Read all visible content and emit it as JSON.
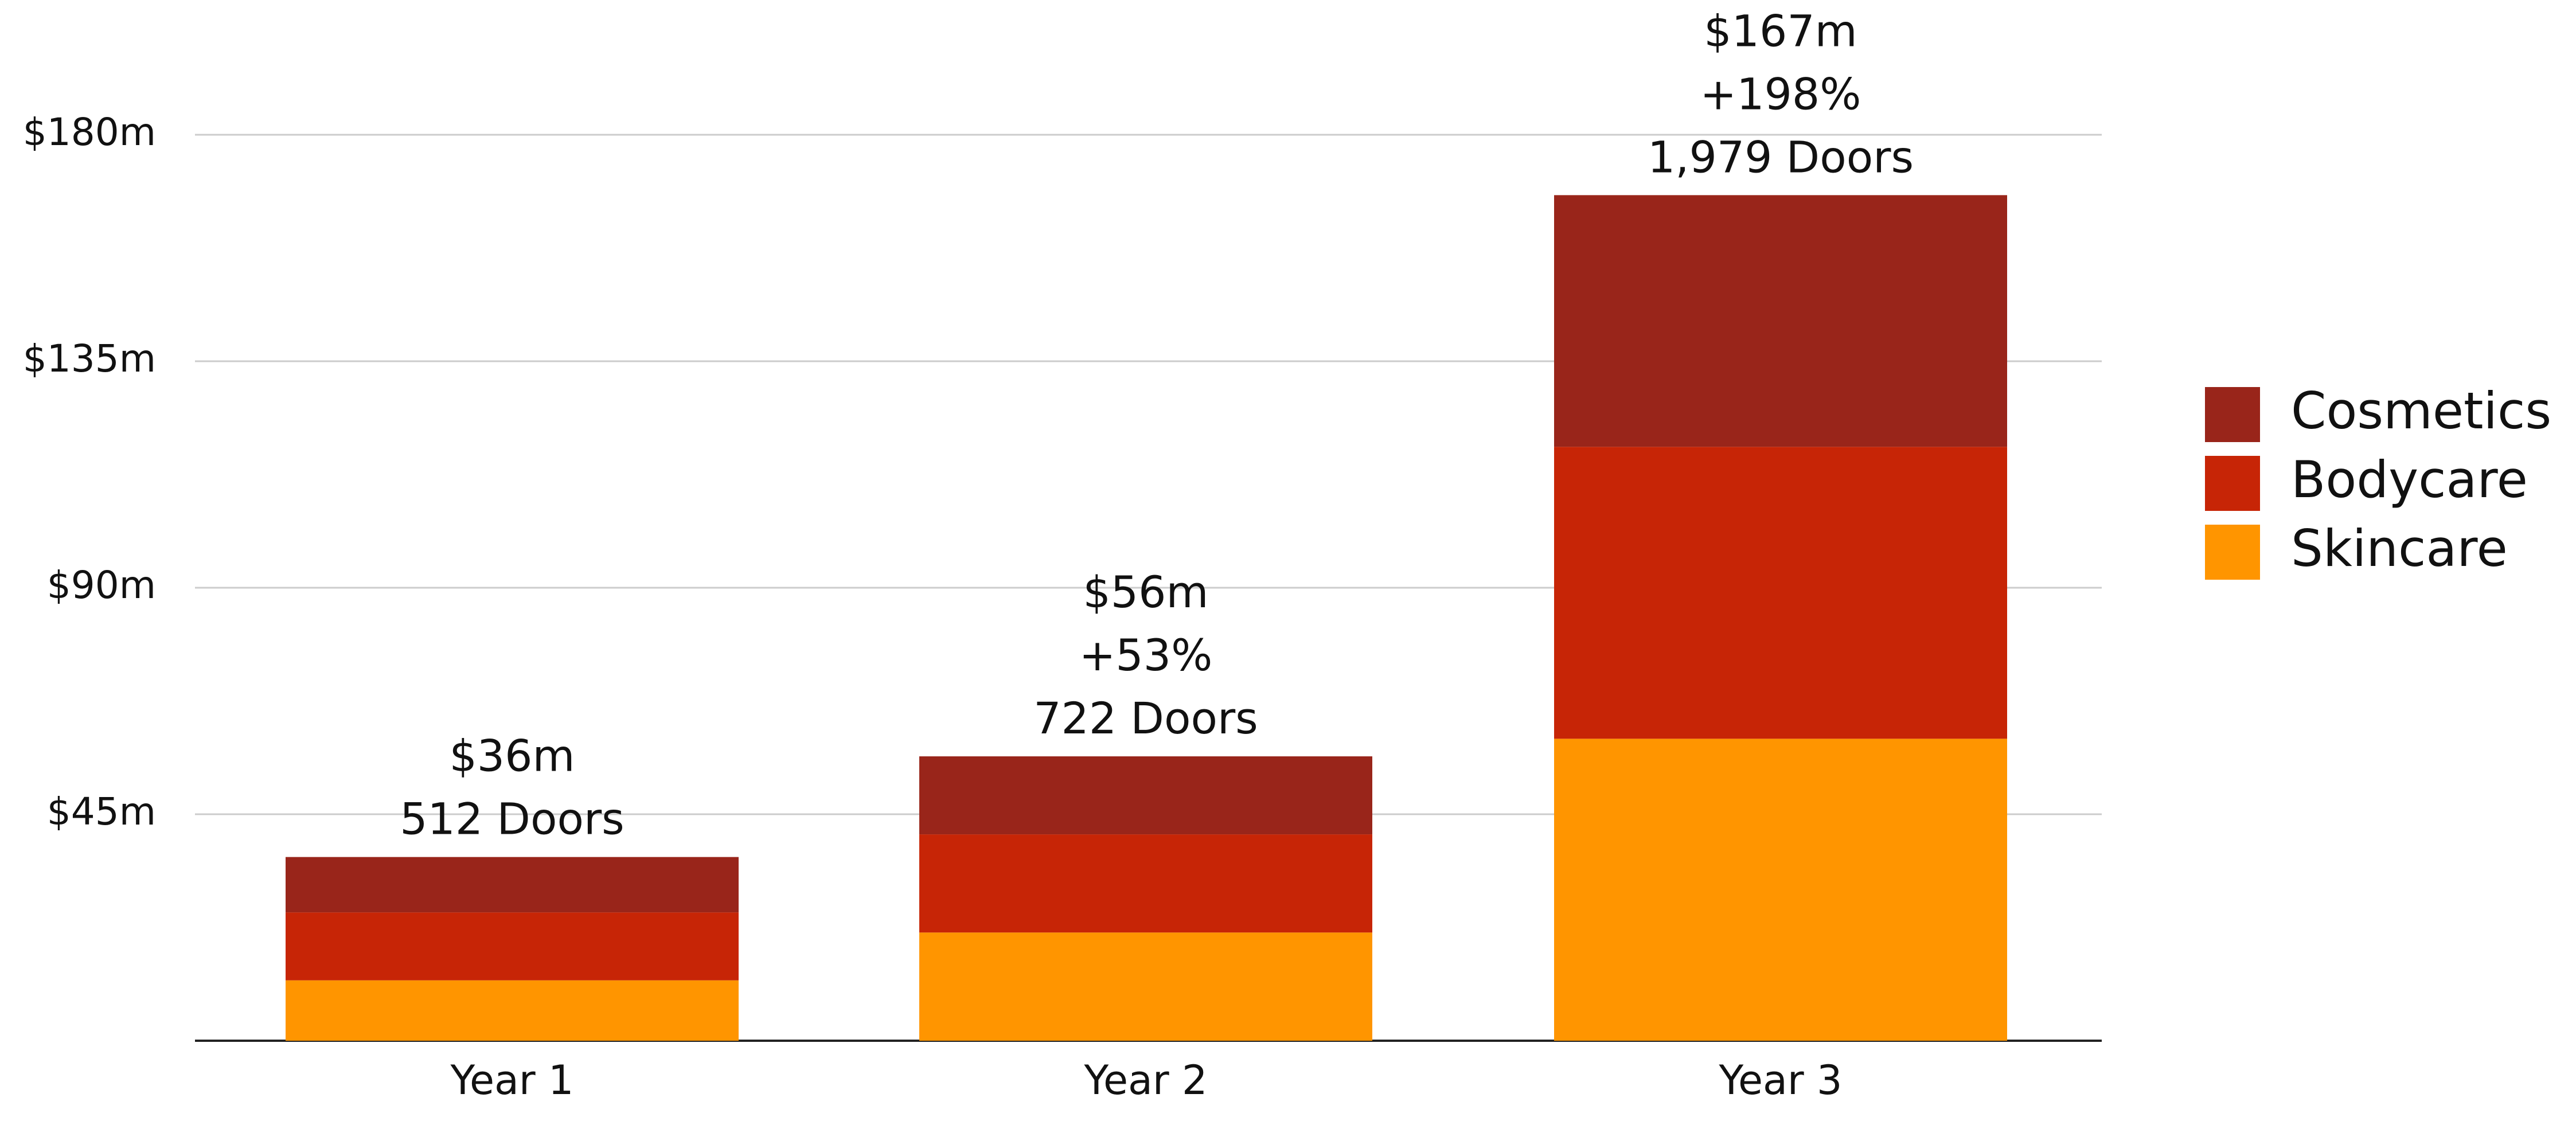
{
  "chart_data": {
    "type": "bar",
    "stacked": true,
    "categories": [
      "Year 1",
      "Year 2",
      "Year 3"
    ],
    "series": [
      {
        "name": "Skincare",
        "color": "#FF9500",
        "values": [
          12,
          21.5,
          60
        ]
      },
      {
        "name": "Bodycare",
        "color": "#C72506",
        "values": [
          13.5,
          19.5,
          58
        ]
      },
      {
        "name": "Cosmetics",
        "color": "#99251A",
        "values": [
          11,
          15.5,
          50
        ]
      }
    ],
    "bar_annotations": [
      [
        "$36m",
        "512 Doors"
      ],
      [
        "$56m",
        "+53%",
        "722 Doors"
      ],
      [
        "$167m",
        "+198%",
        "1,979 Doors"
      ]
    ],
    "y_axis": {
      "ticks": [
        45,
        90,
        135,
        180
      ],
      "tick_labels": [
        "$45m",
        "$90m",
        "$135m",
        "$180m"
      ],
      "range": [
        0,
        180
      ]
    },
    "grid": true,
    "legend_position": "right",
    "legend_order": [
      "Cosmetics",
      "Bodycare",
      "Skincare"
    ]
  }
}
